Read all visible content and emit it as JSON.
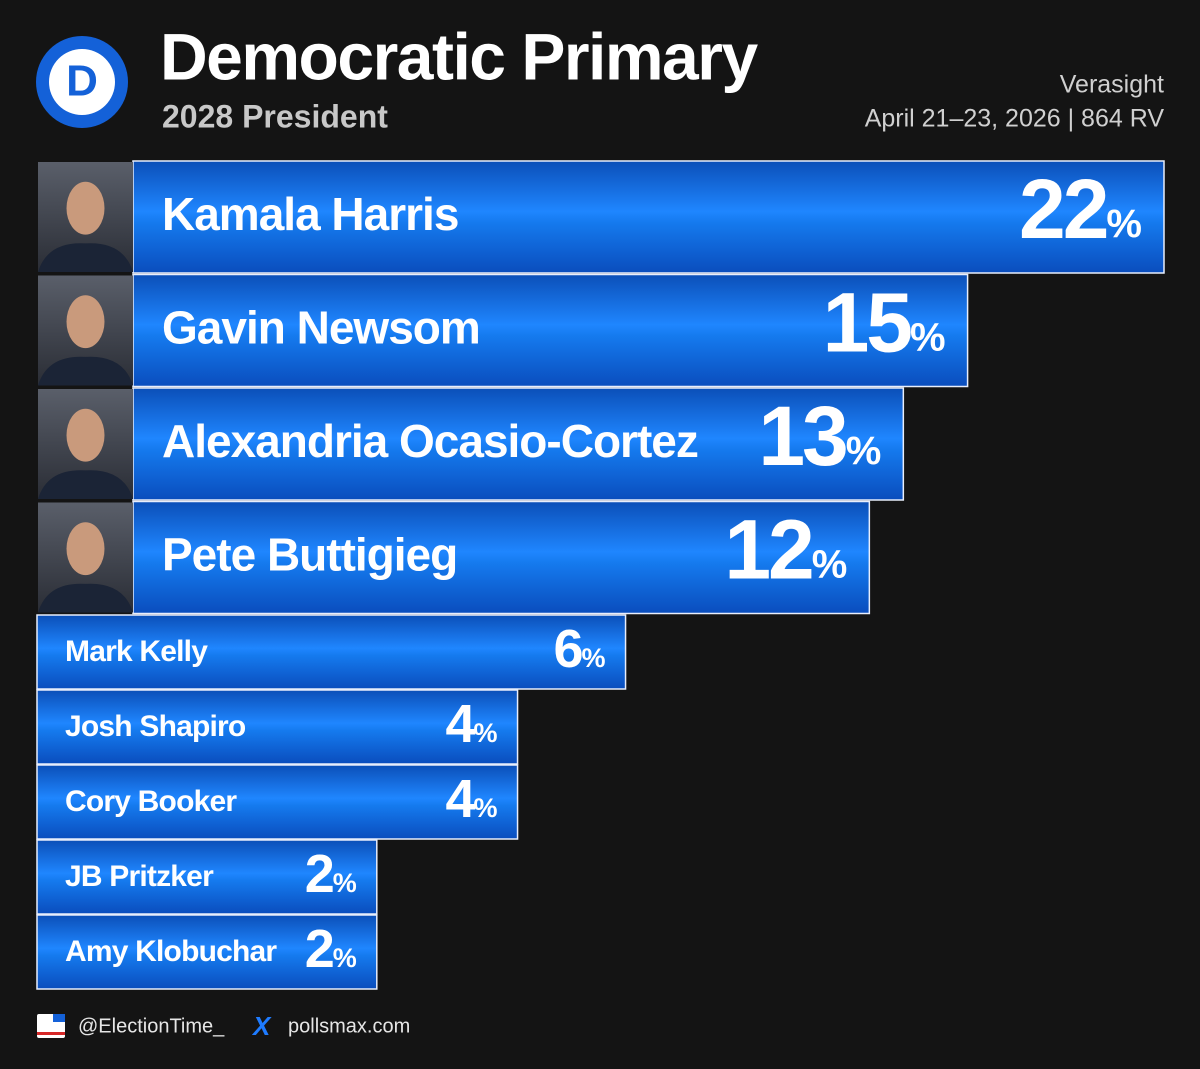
{
  "header": {
    "logo": "D",
    "source": "Verasight",
    "dates": "April 21–23, 2026 | 864 RV"
  },
  "chart_data": {
    "type": "bar",
    "title": "Democratic Primary",
    "subtitle": "2028 President",
    "categories": [
      "Kamala Harris",
      "Gavin Newsom",
      "Alexandria Ocasio-Cortez",
      "Pete Buttigieg",
      "Mark Kelly",
      "Josh Shapiro",
      "Cory Booker",
      "JB Pritzker",
      "Amy Klobuchar"
    ],
    "values": [
      22,
      15,
      13,
      12,
      6,
      4,
      4,
      2,
      2
    ],
    "value_labels": [
      "22%",
      "15%",
      "13%",
      "12%",
      "6%",
      "4%",
      "4%",
      "2%",
      "2%"
    ],
    "color": "#1170e6"
  },
  "footer": {
    "handle": "@ElectionTime_",
    "site": "pollsmax.com"
  }
}
